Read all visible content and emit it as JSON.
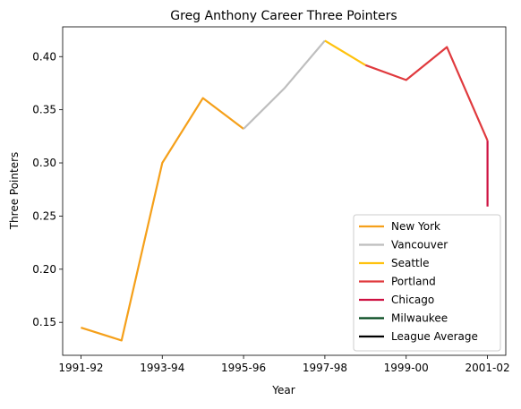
{
  "chart_data": {
    "type": "line",
    "title": "Greg Anthony Career Three Pointers",
    "xlabel": "Year",
    "ylabel": "Three Pointers",
    "x_ticks": [
      "1991-92",
      "1993-94",
      "1995-96",
      "1997-98",
      "1999-00",
      "2001-02"
    ],
    "y_ticks": [
      "0.15",
      "0.20",
      "0.25",
      "0.30",
      "0.35",
      "0.40"
    ],
    "ylim": [
      0.119,
      0.428
    ],
    "legend_position": "lower-right",
    "series": [
      {
        "name": "New York",
        "color": "#F5A01A",
        "points": [
          [
            "1991-92",
            0.145
          ],
          [
            "1992-93",
            0.133
          ],
          [
            "1993-94",
            0.3
          ],
          [
            "1994-95",
            0.361
          ],
          [
            "1995-96",
            0.332
          ]
        ]
      },
      {
        "name": "Vancouver",
        "color": "#BEBEBE",
        "points": [
          [
            "1995-96",
            0.332
          ],
          [
            "1996-97",
            0.37
          ],
          [
            "1997-98",
            0.415
          ]
        ]
      },
      {
        "name": "Seattle",
        "color": "#FFC20E",
        "points": [
          [
            "1997-98",
            0.415
          ],
          [
            "1998-99",
            0.392
          ]
        ]
      },
      {
        "name": "Portland",
        "color": "#E03A3E",
        "points": [
          [
            "1998-99",
            0.392
          ],
          [
            "1999-00",
            0.378
          ],
          [
            "2000-01",
            0.409
          ],
          [
            "2001-02",
            0.321
          ]
        ]
      },
      {
        "name": "Chicago",
        "color": "#CE1141",
        "points": [
          [
            "2001-02",
            0.321
          ],
          [
            "2001-02",
            0.259
          ]
        ]
      },
      {
        "name": "Milwaukee",
        "color": "#00471B",
        "points": []
      },
      {
        "name": "League Average",
        "color": "#000000",
        "points": []
      }
    ]
  }
}
